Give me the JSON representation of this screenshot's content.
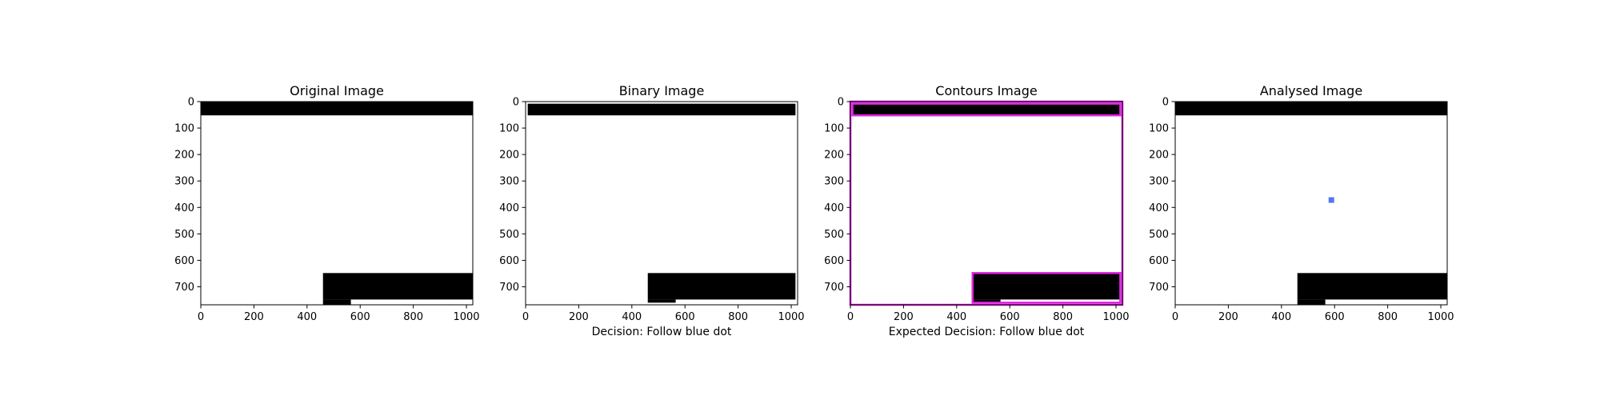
{
  "chart_data": [
    {
      "type": "image",
      "title": "Original Image",
      "xlabel": "",
      "xlim": [
        0,
        1024
      ],
      "ylim": [
        768,
        0
      ],
      "xticks": [
        0,
        200,
        400,
        600,
        800,
        1000
      ],
      "yticks": [
        0,
        100,
        200,
        300,
        400,
        500,
        600,
        700
      ],
      "black_regions": [
        {
          "x0": 0,
          "x1": 1024,
          "y0": 0,
          "y1": 52
        },
        {
          "x0": 460,
          "x1": 1024,
          "y0": 648,
          "y1": 748
        },
        {
          "x0": 460,
          "x1": 565,
          "y0": 748,
          "y1": 768
        }
      ],
      "contours": [],
      "markers": []
    },
    {
      "type": "image",
      "title": "Binary Image",
      "xlabel": "Decision: Follow blue dot",
      "xlim": [
        0,
        1024
      ],
      "ylim": [
        768,
        0
      ],
      "xticks": [
        0,
        200,
        400,
        600,
        800,
        1000
      ],
      "yticks": [
        0,
        100,
        200,
        300,
        400,
        500,
        600,
        700
      ],
      "black_regions": [
        {
          "x0": 8,
          "x1": 1016,
          "y0": 8,
          "y1": 52
        },
        {
          "x0": 460,
          "x1": 1016,
          "y0": 648,
          "y1": 748
        },
        {
          "x0": 460,
          "x1": 565,
          "y0": 748,
          "y1": 760
        }
      ],
      "contours": [],
      "markers": []
    },
    {
      "type": "image",
      "title": "Contours Image",
      "xlabel": "Expected Decision: Follow blue dot",
      "xlim": [
        0,
        1024
      ],
      "ylim": [
        768,
        0
      ],
      "xticks": [
        0,
        200,
        400,
        600,
        800,
        1000
      ],
      "yticks": [
        0,
        100,
        200,
        300,
        400,
        500,
        600,
        700
      ],
      "black_regions": [
        {
          "x0": 8,
          "x1": 1016,
          "y0": 8,
          "y1": 52
        },
        {
          "x0": 460,
          "x1": 1016,
          "y0": 648,
          "y1": 748
        },
        {
          "x0": 460,
          "x1": 565,
          "y0": 748,
          "y1": 760
        }
      ],
      "contours": [
        {
          "x0": 0,
          "x1": 1024,
          "y0": 0,
          "y1": 768
        },
        {
          "x0": 8,
          "x1": 1016,
          "y0": 8,
          "y1": 52
        },
        {
          "x0": 460,
          "x1": 1016,
          "y0": 648,
          "y1": 760
        }
      ],
      "contour_color": "#e020e0",
      "markers": []
    },
    {
      "type": "image",
      "title": "Analysed Image",
      "xlabel": "",
      "xlim": [
        0,
        1024
      ],
      "ylim": [
        768,
        0
      ],
      "xticks": [
        0,
        200,
        400,
        600,
        800,
        1000
      ],
      "yticks": [
        0,
        100,
        200,
        300,
        400,
        500,
        600,
        700
      ],
      "black_regions": [
        {
          "x0": 0,
          "x1": 1024,
          "y0": 0,
          "y1": 52
        },
        {
          "x0": 460,
          "x1": 1024,
          "y0": 648,
          "y1": 748
        },
        {
          "x0": 460,
          "x1": 565,
          "y0": 748,
          "y1": 768
        }
      ],
      "contours": [],
      "markers": [
        {
          "x": 588,
          "y": 372,
          "color": "#5577ee"
        }
      ]
    }
  ]
}
